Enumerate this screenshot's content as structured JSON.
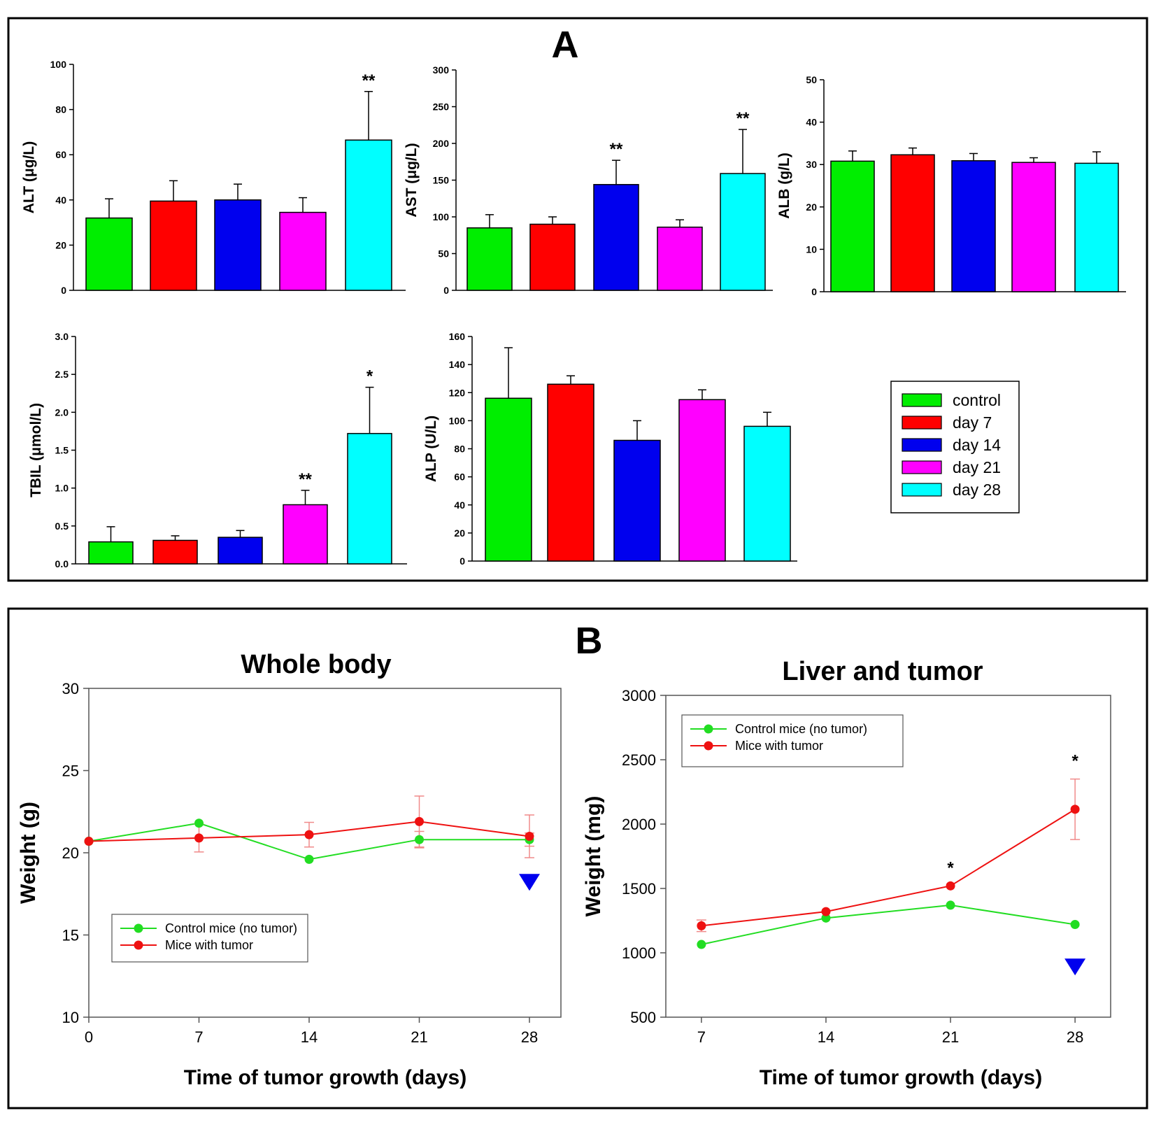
{
  "panels": {
    "a_label": "A",
    "b_label": "B"
  },
  "legend": {
    "entries": [
      {
        "label": "control",
        "color": "#00ee00"
      },
      {
        "label": "day 7",
        "color": "#ff0000"
      },
      {
        "label": "day 14",
        "color": "#0000ee"
      },
      {
        "label": "day 21",
        "color": "#ff00ff"
      },
      {
        "label": "day 28",
        "color": "#00ffff"
      }
    ]
  },
  "chart_data": [
    {
      "type": "bar",
      "ylabel": "ALT (μg/L)",
      "ylim": [
        0,
        100
      ],
      "yticks": [
        "0",
        "20",
        "40",
        "60",
        "80",
        "100"
      ],
      "categories": [
        "control",
        "day 7",
        "day 14",
        "day 21",
        "day 28"
      ],
      "values": [
        32,
        39.5,
        40,
        34.5,
        66.5
      ],
      "errors": [
        8.5,
        9,
        7,
        6.5,
        21.5
      ],
      "annotations": [
        "",
        "",
        "",
        "",
        "**"
      ]
    },
    {
      "type": "bar",
      "ylabel": "AST (μg/L)",
      "ylim": [
        0,
        300
      ],
      "yticks": [
        "0",
        "50",
        "100",
        "150",
        "200",
        "250",
        "300"
      ],
      "categories": [
        "control",
        "day 7",
        "day 14",
        "day 21",
        "day 28"
      ],
      "values": [
        85,
        90,
        144,
        86,
        159
      ],
      "errors": [
        18,
        10,
        33,
        10,
        60
      ],
      "annotations": [
        "",
        "",
        "**",
        "",
        "**"
      ]
    },
    {
      "type": "bar",
      "ylabel": "ALB (g/L)",
      "ylim": [
        0,
        50
      ],
      "yticks": [
        "0",
        "10",
        "20",
        "30",
        "40",
        "50"
      ],
      "categories": [
        "control",
        "day 7",
        "day 14",
        "day 21",
        "day 28"
      ],
      "values": [
        30.8,
        32.3,
        30.9,
        30.5,
        30.3
      ],
      "errors": [
        2.4,
        1.6,
        1.7,
        1.1,
        2.7
      ],
      "annotations": [
        "",
        "",
        "",
        "",
        ""
      ]
    },
    {
      "type": "bar",
      "ylabel": "TBIL (μmol/L)",
      "ylim": [
        0,
        3
      ],
      "yticks": [
        "0.0",
        "0.5",
        "1.0",
        "1.5",
        "2.0",
        "2.5",
        "3.0"
      ],
      "categories": [
        "control",
        "day 7",
        "day 14",
        "day 21",
        "day 28"
      ],
      "values": [
        0.29,
        0.31,
        0.35,
        0.78,
        1.72
      ],
      "errors": [
        0.2,
        0.06,
        0.09,
        0.19,
        0.61
      ],
      "annotations": [
        "",
        "",
        "",
        "**",
        "*"
      ]
    },
    {
      "type": "bar",
      "ylabel": "ALP (U/L)",
      "ylim": [
        0,
        160
      ],
      "yticks": [
        "0",
        "20",
        "40",
        "60",
        "80",
        "100",
        "120",
        "140",
        "160"
      ],
      "categories": [
        "control",
        "day 7",
        "day 14",
        "day 21",
        "day 28"
      ],
      "values": [
        116,
        126,
        86,
        115,
        96
      ],
      "errors": [
        36,
        6,
        14,
        7,
        10
      ],
      "annotations": [
        "",
        "",
        "",
        "",
        ""
      ]
    },
    {
      "type": "line",
      "title": "Whole body",
      "xlabel": "Time of tumor growth (days)",
      "ylabel": "Weight (g)",
      "x": [
        0,
        7,
        14,
        21,
        28
      ],
      "xlim": [
        0,
        30
      ],
      "ylim": [
        10,
        30
      ],
      "xticks": [
        "0",
        "7",
        "14",
        "21",
        "28"
      ],
      "yticks": [
        "10",
        "15",
        "20",
        "25",
        "30"
      ],
      "series": [
        {
          "name": "Control mice (no tumor)",
          "color": "#22dd22",
          "values": [
            20.7,
            21.8,
            19.6,
            20.8,
            20.8
          ],
          "errors": [
            0,
            0,
            0,
            0.5,
            0.4
          ]
        },
        {
          "name": "Mice with tumor",
          "color": "#ee1111",
          "values": [
            20.7,
            20.9,
            21.1,
            21.9,
            21.0
          ],
          "errors": [
            0,
            0.85,
            0.75,
            1.55,
            1.3
          ]
        }
      ],
      "annotations": [
        {
          "x": 28,
          "y": 18.2,
          "marker": "down-triangle",
          "color": "#0000ee"
        }
      ],
      "legend_position": "bottom-left"
    },
    {
      "type": "line",
      "title": "Liver and tumor",
      "xlabel": "Time of tumor growth (days)",
      "ylabel": "Weight (mg)",
      "x": [
        7,
        14,
        21,
        28
      ],
      "xlim": [
        5,
        30
      ],
      "ylim": [
        500,
        3000
      ],
      "xticks": [
        "7",
        "14",
        "21",
        "28"
      ],
      "yticks": [
        "500",
        "1000",
        "1500",
        "2000",
        "2500",
        "3000"
      ],
      "series": [
        {
          "name": "Control mice (no tumor)",
          "color": "#22dd22",
          "values": [
            1065,
            1270,
            1370,
            1220
          ],
          "errors": [
            0,
            0,
            0,
            0
          ]
        },
        {
          "name": "Mice with tumor",
          "color": "#ee1111",
          "values": [
            1210,
            1320,
            1520,
            2115
          ],
          "errors": [
            45,
            0,
            0,
            235
          ]
        }
      ],
      "annotations": [
        {
          "x": 21,
          "text": "*"
        },
        {
          "x": 28,
          "text": "*"
        },
        {
          "x": 28,
          "y": 890,
          "marker": "down-triangle",
          "color": "#0000ee"
        }
      ],
      "legend_position": "top-left"
    }
  ]
}
